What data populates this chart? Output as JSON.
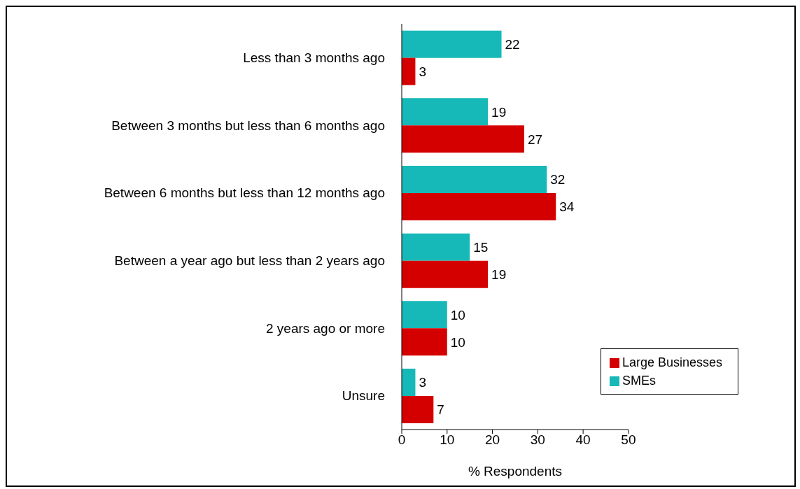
{
  "chart_data": {
    "type": "bar",
    "orientation": "horizontal",
    "xlabel": "% Respondents",
    "categories": [
      "Less than 3 months ago",
      "Between 3 months but less than 6 months ago",
      "Between 6 months but less than 12 months ago",
      "Between a year ago but less than 2 years ago",
      "2 years ago or more",
      "Unsure"
    ],
    "series": [
      {
        "name": "SMEs",
        "color": "#17b8b8",
        "values": [
          22,
          19,
          32,
          15,
          10,
          3
        ]
      },
      {
        "name": "Large Businesses",
        "color": "#d40000",
        "values": [
          3,
          27,
          34,
          19,
          10,
          7
        ]
      }
    ],
    "xlim": [
      0,
      50
    ],
    "xticks": [
      0,
      10,
      20,
      30,
      40,
      50
    ],
    "data_labels": true,
    "grid": false,
    "legend": "bottom right"
  }
}
